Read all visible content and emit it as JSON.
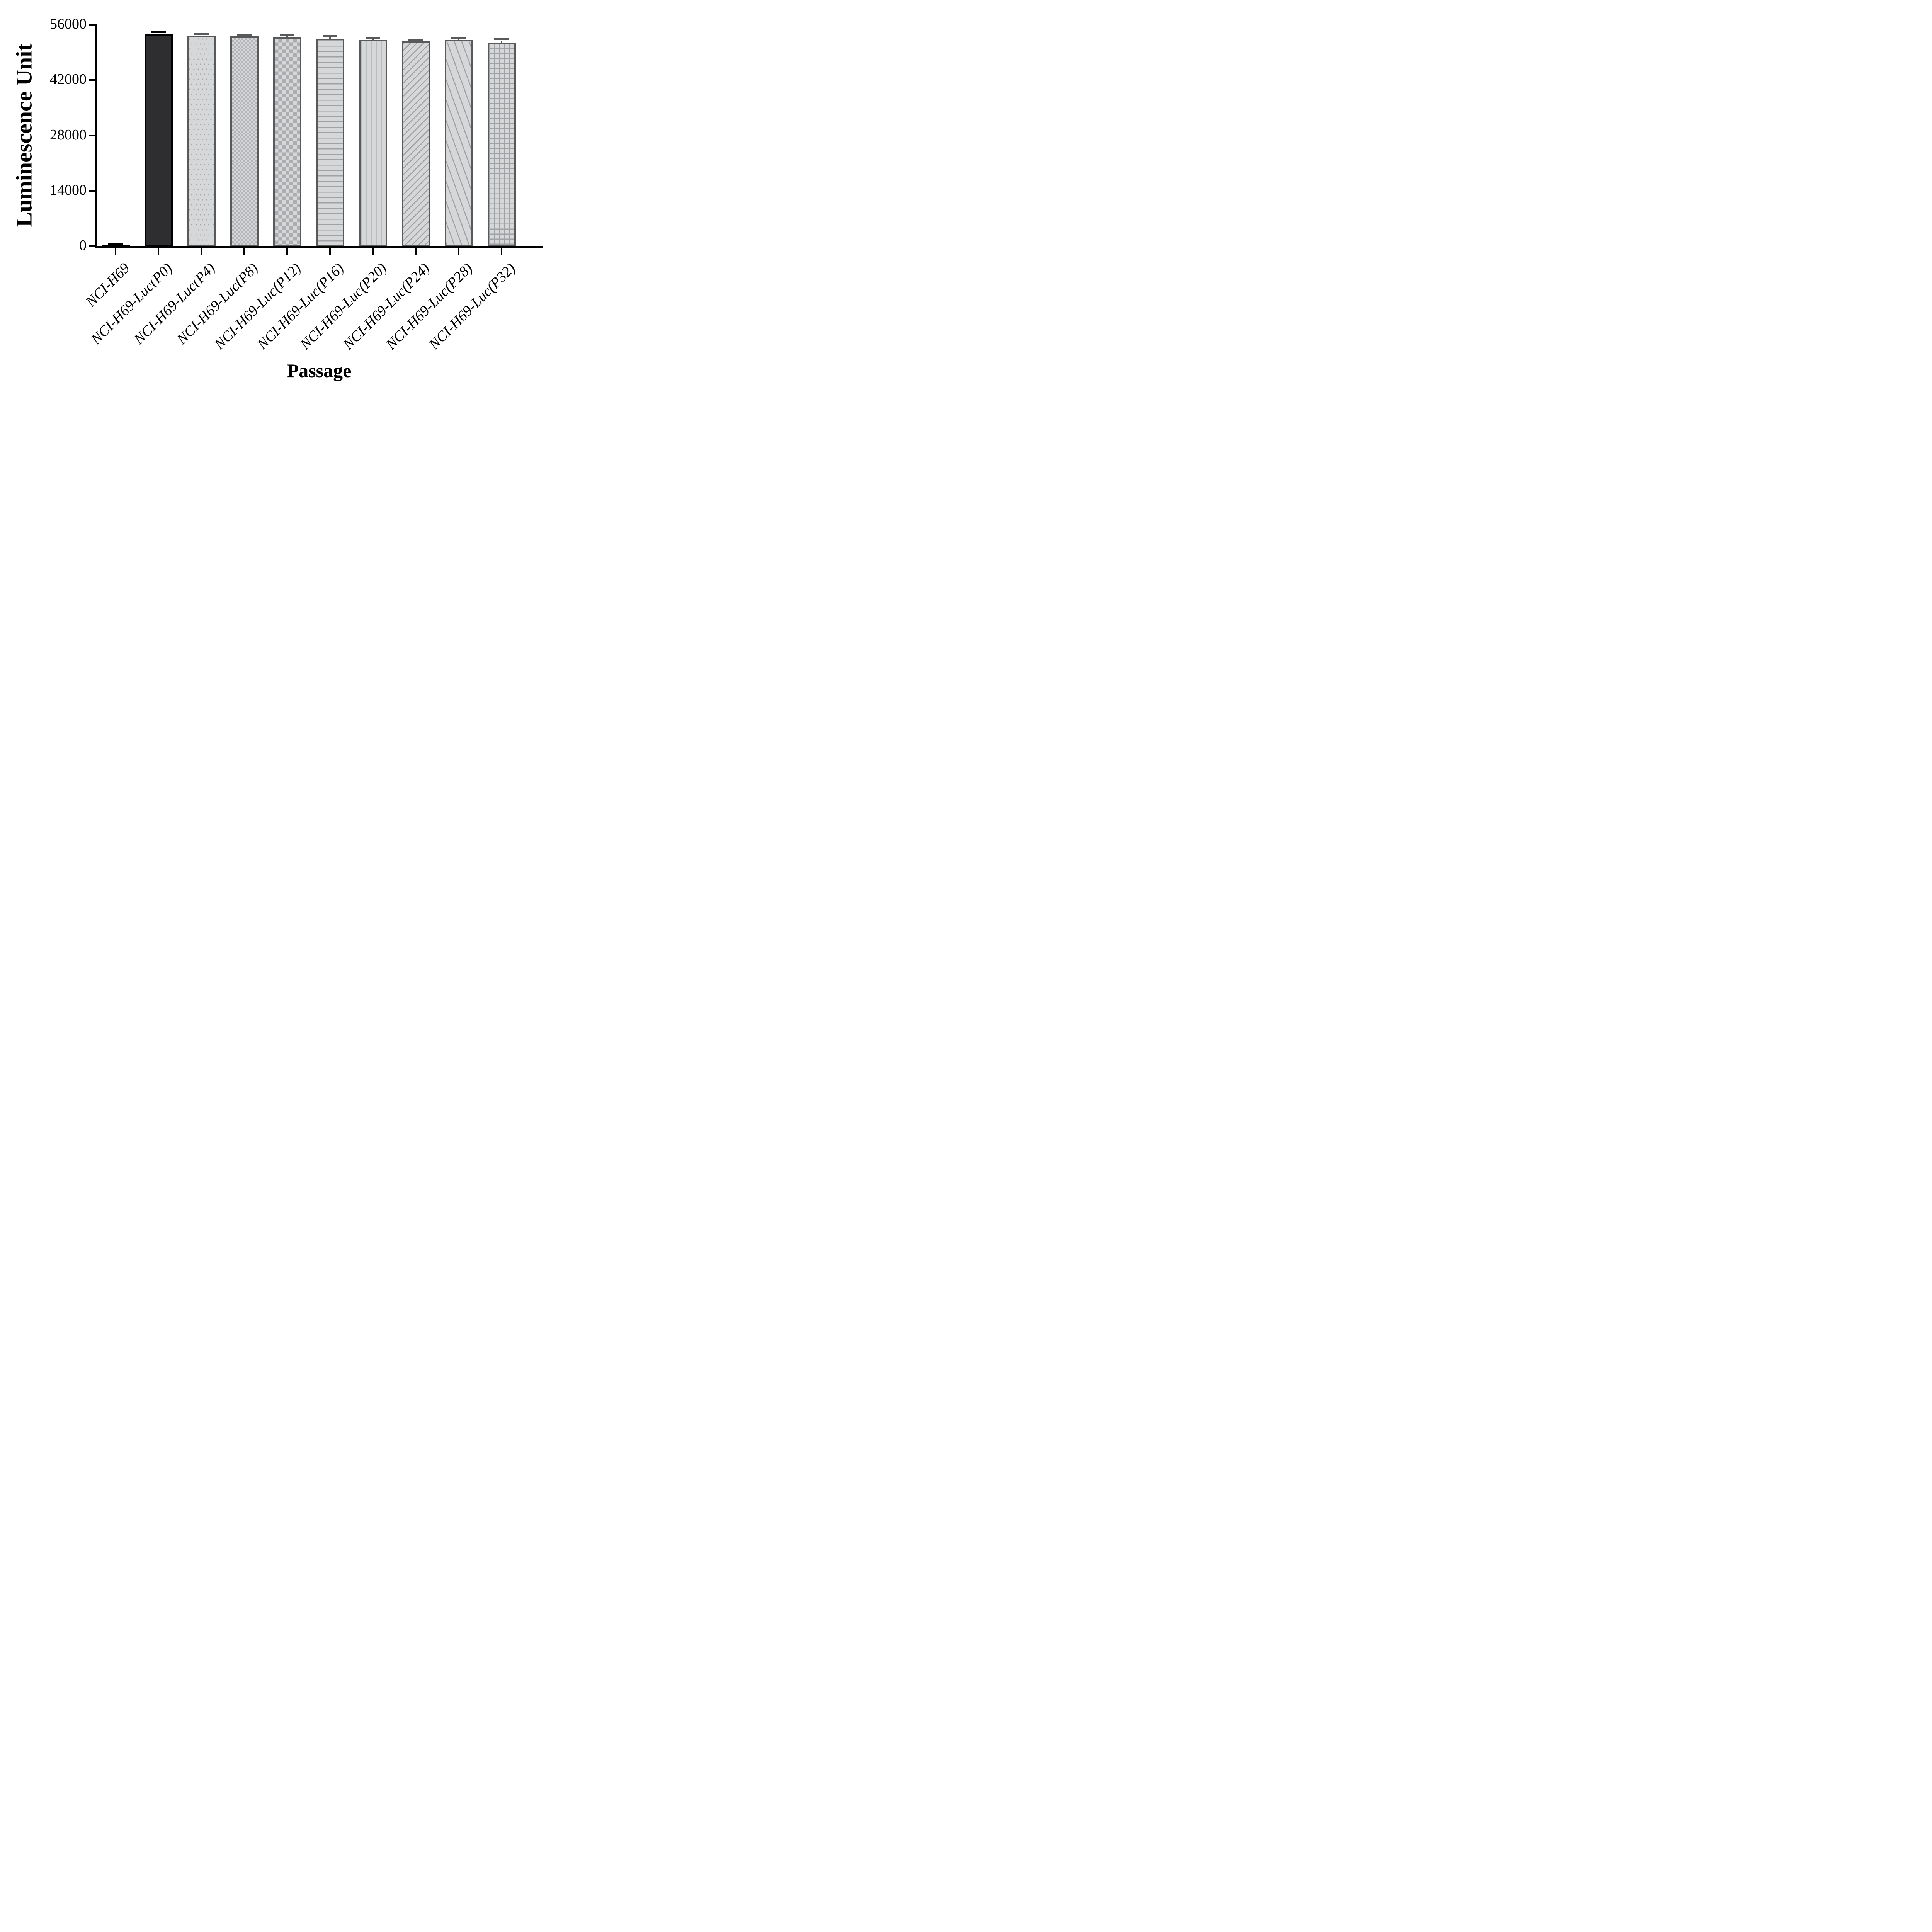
{
  "chart_data": {
    "type": "bar",
    "title": "",
    "xlabel": "Passage",
    "ylabel": "Luminescence Unit",
    "categories": [
      "NCI-H69",
      "NCI-H69-Luc(P0)",
      "NCI-H69-Luc(P4)",
      "NCI-H69-Luc(P8)",
      "NCI-H69-Luc(P12)",
      "NCI-H69-Luc(P16)",
      "NCI-H69-Luc(P20)",
      "NCI-H69-Luc(P24)",
      "NCI-H69-Luc(P28)",
      "NCI-H69-Luc(P32)"
    ],
    "values": [
      300,
      53700,
      53200,
      53100,
      52900,
      52500,
      52200,
      51800,
      52200,
      51500
    ],
    "errors": [
      200,
      400,
      400,
      400,
      600,
      650,
      550,
      450,
      500,
      800
    ],
    "error_bars": "upper, capped",
    "ylim": [
      0,
      56000
    ],
    "yticks": [
      0,
      14000,
      28000,
      42000,
      56000
    ],
    "ytick_labels": [
      "0",
      "14000",
      "28000",
      "42000",
      "56000"
    ],
    "grid": false,
    "legend": "none",
    "bar_patterns": [
      "solid-black",
      "solid-dark",
      "dots",
      "checker-fine",
      "checker-large",
      "hlines",
      "vlines",
      "diag-up",
      "diag-steep",
      "grid"
    ],
    "bar_outline_colors": [
      "#000000",
      "#000000",
      "#58595B",
      "#58595B",
      "#58595B",
      "#58595B",
      "#58595B",
      "#58595B",
      "#58595B",
      "#58595B"
    ],
    "error_bar_colors": [
      "#000000",
      "#000000",
      "#58595B",
      "#58595B",
      "#58595B",
      "#58595B",
      "#58595B",
      "#58595B",
      "#58595B",
      "#58595B"
    ],
    "colors": {
      "axis": "#000000",
      "light_fill": "#D6D7D8",
      "pattern_gray": "#A7A9AC",
      "dark_fill": "#2E2E30",
      "outline_gray": "#58595B",
      "background": "#FFFFFF"
    }
  }
}
